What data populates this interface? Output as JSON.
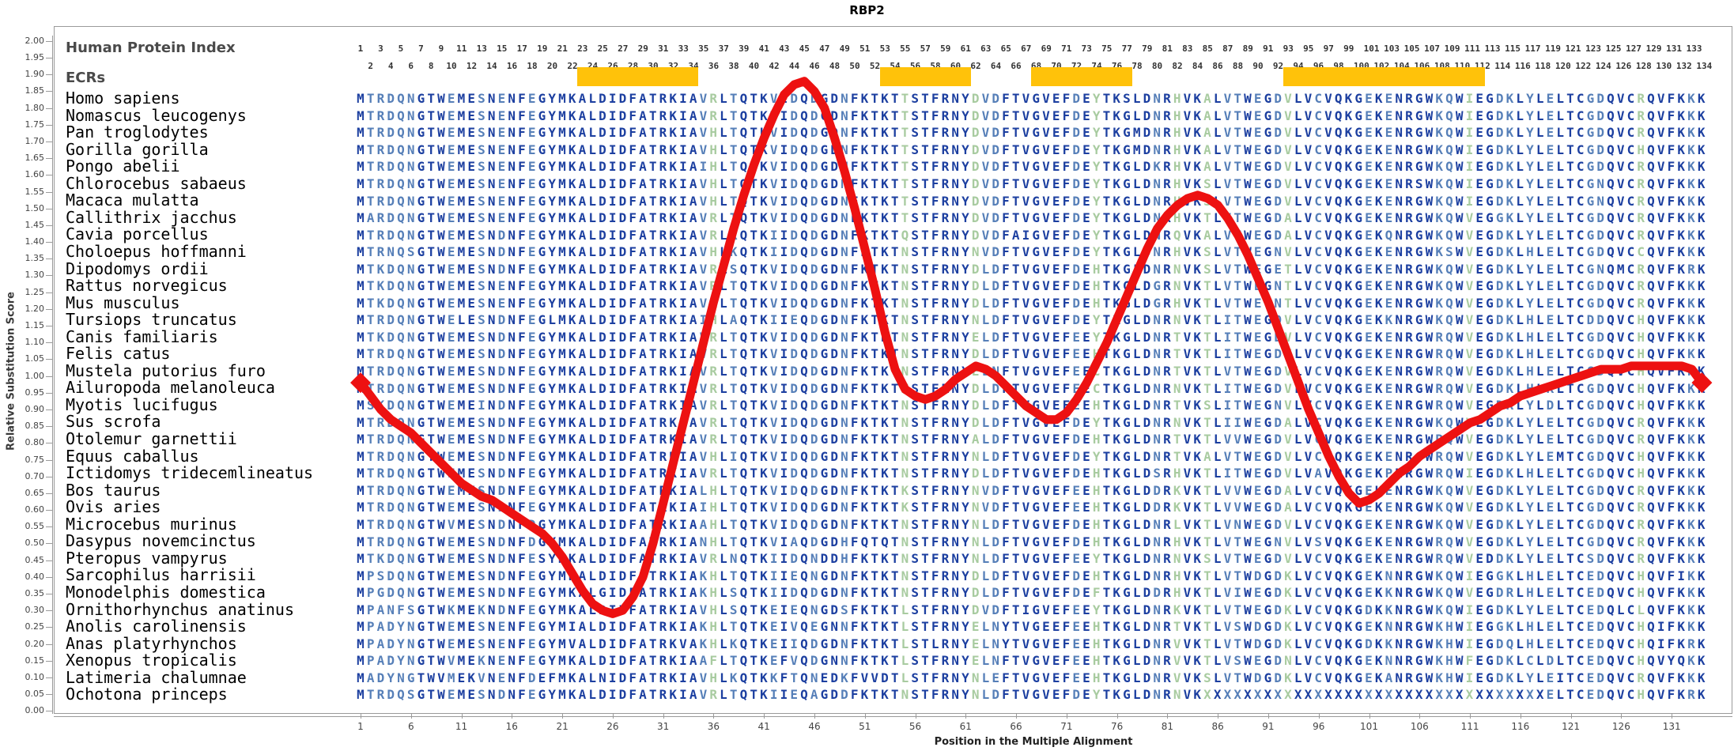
{
  "title": "RBP2",
  "header": {
    "index_label": "Human Protein Index",
    "ecr_label": "ECRs"
  },
  "y_axis": {
    "label": "Relative Substitution Score",
    "min": 0,
    "max": 2,
    "step": 0.05
  },
  "x_axis": {
    "label": "Position in the Multiple Alignment",
    "tick_first": 1,
    "tick_step": 5,
    "tick_last": 131,
    "positions": 134
  },
  "colors": {
    "conserved": "#1C3FA0",
    "variable": "#567FB8",
    "hypervariable": "#A8CBA0",
    "ecr_bar": "#FFC20A",
    "curve": "#ED1111",
    "axis": "#9a9a9a"
  },
  "ecr_regions": [
    {
      "start": 23,
      "end": 34
    },
    {
      "start": 53,
      "end": 61
    },
    {
      "start": 68,
      "end": 77
    },
    {
      "start": 93,
      "end": 112
    }
  ],
  "species": [
    "Homo sapiens",
    "Nomascus leucogenys",
    "Pan troglodytes",
    "Gorilla gorilla",
    "Pongo abelii",
    "Chlorocebus sabaeus",
    "Macaca mulatta",
    "Callithrix jacchus",
    "Cavia porcellus",
    "Choloepus hoffmanni",
    "Dipodomys ordii",
    "Rattus norvegicus",
    "Mus musculus",
    "Tursiops truncatus",
    "Canis familiaris",
    "Felis catus",
    "Mustela putorius furo",
    "Ailuropoda melanoleuca",
    "Myotis lucifugus",
    "Sus scrofa",
    "Otolemur garnettii",
    "Equus caballus",
    "Ictidomys tridecemlineatus",
    "Bos taurus",
    "Ovis aries",
    "Microcebus murinus",
    "Dasypus novemcinctus",
    "Pteropus vampyrus",
    "Sarcophilus harrisii",
    "Monodelphis domestica",
    "Ornithorhynchus anatinus",
    "Anolis carolinensis",
    "Anas platyrhynchos",
    "Xenopus tropicalis",
    "Latimeria chalumnae",
    "Ochotona princeps"
  ],
  "sequences": [
    "MTRDQNGTWEMESNENFEGYMKALDIDFATRKIAVRLTQTKVIDQDGDNFKTKTTSTFRNYDVDFTVGVEFDEYTKSLDNRHVKALVTWEGDVLVCVQKGEKENRGWKQWIEGDKLYLELTCGDQVCRQVFKKK",
    "MTRDQNGTWEMESNENFEGYMKALDIDFATRKIAVRLTQTKVIDQDGDNFKTKTTSTFRNYDVDFTVGVEFDEYTKGLDNRHVKALVTWEGDVLVCVQKGEKENRGWKQWIEGDKLYLELTCGDQVCRQVFKKK",
    "MTRDQNGTWEMESNENFEGYMKALDIDFATRKIAVHLTQTKVIDQDGDNFKTKTTSTFRNYDVDFTVGVEFDEYTKGMDNRHVKALVTWEGDVLVCVQKGEKENRGWKQWIEGDKLYLELTCGDQVCRQVFKKK",
    "MTRDQNGTWEMESNENFEGYMKALDIDFATRKIAVHLTQTKVIDQDGDNFKTKTTSTFRNYDVDFTVGVEFDEYTKGMDNRHVKALVTWEGDVLVCVQKGEKENRGWKQWIEGDKLYLELTCGDQVCHQVFKKK",
    "MTRDQNGTWEMESNENFEGYMKALDIDFATRKIAIHLTQTKVIDQDGDNFKTKTTSTFRNYDVDFTVGVEFDEYTKGLDKRHVKALVTWEGDVLVCVQKGEKENRGWKQWIEGDKLYLELTCGDQVCRQVFKKK",
    "MTRDQNGTWEMESNENFEGYMKALDIDFATRKIAVHLTQTKVIDQDGDNFKTKTTSTFRNYDVDFTVGVEFDEYTKGLDNRHVKSLVTWEGDVLVCVQKGEKENRSWKQWIEGDKLYLELTCGNQVCRQVFKKK",
    "MTRDQNGTWEMESNENFEGYMKALDIDFATRKIAVHLTQTKVIDQDGDNFKTKTTSTFRNYDVDFTVGVEFDEYTKGLDNRHVKSLVTWEGDVLVCVQKGEKENRGWKQWIEGDKLYLELTCGNQVCRQVFKKK",
    "MARDQNGTWEMESNENFEGYMKALDIDFATRKIAVRLTQTKVIDQDGDNFKTKTTSTFRNYDVDFTVGVEFDEYTKGLDNRHVKTLVTWEGDALVCVQKGEKENRGWKQWVEGGKLYLELTCGDQVCRQVFKKK",
    "MTRDQNGTWEMESNDNFEGYMKALDIDFATRKIAVRLKQTKIIDQDGDNFKTKTQSTFRNYDVDFAIGVEFDEYTKGLDNRQVKALVTWEGDALVCVQKGEKQNRGWKQWVEGDKLYLELTCGDQVCRQVFKKK",
    "MTRNQSGTWEMESNDNFEGYMKALDIDFATRKIAVHLKQTKIIDQDGDNFKTKTNSTFRNYNVDFTVGVEFDEYTKGLDNRHVKSLVTWEGNVLVCVQKGEKENRGWKSWVEGDKLHLELTCGDQVCCQVFKKK",
    "MTKDQNGTWEMESNDNFEGYMKALDIDFATRKIAVRLSQTKVIDQDGDNFKTKTNSTFRNYDLDFTVGVEFDEHTKGLDNRNVKSLVTWEGETLVCVQKGEKENRGWKQWVEGDKLYLELTCGNQMCRQVFKRK",
    "MTKDQNGTWEMESNENFEGYMKALDIDFATRKIAVRLTQTKVIDQDGDNFKTKTNSTFRNYDLDFTVGVEFDEHTKGLDGRNVKTLVTWEGNTLVCVQKGEKENRGWKQWVEGDKLYLELTCGDQVCRQVFKKK",
    "MTKDQNGTWEMESNENFEGYMKALDIDFATRKIAVRLTQTKVIDQDGDNFKTKTNSTFRNYDLDFTVGVEFDEHTKGLDGRHVKTLVTWEGNTLVCVQKGEKENRGWKQWVEGDKLYLELTCGDQVCRQVFKKK",
    "MTRDQNGTWELESNDNFEGLMKALDIDFATRKIAIHLAQTKIIEQDGDNFKTKTNSTFRNYNLDFTVGVEFDEYTKGLDNRNVKTLITWEGDVLVCVQKGEKKNRGWKQWVEGDKLHLELTCDDQVCHQVFKKK",
    "MTKDQNGTWEMESNDNFEGYMKALDIDFATRKIAVRLTQTKVIDQDGDNFKTKTNSTFRNYELDFTVGVEFEEYTKGLDNRTVKTLITWEGDVLVCVQKGEKENRGWRQWVEGDKLHLELTCGDQVCHQVFKKK",
    "MTRDQNGTWEMESNDNFEGYMKALDIDFATRKIAVRLTQTKVIDQDGDNFKTKTNSTFRNYDLDFTVGVEFEEHTKGLDNRTVKTLITWEGDVLVCVQKGEKENRGWRQWVEGDKLHLELTCGDQVCHQVFKKK",
    "MTRDQNGTWEMESNDNFEGYMKALDIDFATRKIAVRLTQTKVIDQDGDNFKTKTNSTFRNYELNFTVGVEFEECTKGLDNRTVKTLVTWEGDVLVCVQKGEKENRGWRQWVEGDKLHLELTCGDQVCHQVFKKK",
    "MTRDQNGTWEMESNDNFEGYMKALDIDFATRKIAVRLTQTKVIDQDGDNFKTKTNSTFRNYDLDFTVGVEFEECTKGLDNRNVKTLITWEGDVLVCVQKGEKENRGWRQWVEGDKLHLKLTCGDQVCHQVFKKK",
    "MSKDQNGTWEMEINDNFEGYMKALDIDFATRKIAVRLTQTKVIDQDGDNFKTKTNSTFRNYDLDFTVGVEFEEHTKGLDNRTVKSLITWEGNVLVCVQKGEKENRGWRQWVEGDKLYLDLTCGDQVCHQVFKKK",
    "MTRDQNGTWEMESNDNFEGYMKALDIDFATRKIAVRLTQTKVIDQDGDNFKTKTNSTFRNYDLDFTVGVEFDEYTKGLDNRNVKTLIIWEGDALVCVQKGEKENRGWKQWVEGDKLYLELTCGDQVCRQVFKKK",
    "MTRDQNGTWEMESNDNFEGYMKALDIDFATRKIAVRLTQTKVIDQDGDNFKTKTNSTFRNYALDFTVGVEFDEHTKGLDNRTVKTLVVWEGDVLVCVQKGEKENRGWRQWVEGDKLYLELTCGDQVCRQVFKKK",
    "MTRDQNGTWEMESNDNFEGYMKALDIDFATRKIAVHLIQTKVIDQDGDNFKTKTNSTFRNYNLDFTVGVEFDEYTKGLDNRTVKALVTWEGDVLVCVQKGEKENRGWRQWVEGDKLYLEMTCGDQVCHQVFKKK",
    "MTRDQNGTWEMESNDNFEGYMKALDIDFATRKIAVRLTQTKVIDQDGDNFKTKTNSTFRNYDLDFTVGVEFDEHTKGLDSRHVKTLITWEGDVLVAVQKGEKPNRGWRQWIEGDKLHLELTCGDQVCHQVFKKK",
    "MTRDQNGTWEMESNDNFEGYMKALDIDFATRKIALHLTQTKVIDQDGDNFKTKTKSTFRNYNVDFTVGVEFEEHTKGLDDRKVKTLVVWEGDALVCVQKGEKENRGWKQWVEGDKLYLELTCGDQVCRQVFKKK",
    "MTRDQNGTWEMESNDNFEGYMKALDIDFATRKIAIHLTQTKVIDQDGDNFKTKTKSTFRNYNVDFTVGVEFEEHTKGLDDRKVKTLVVWEGDALVCVQKGEKENRGWKQWVEGDKLYLELTCGDQVCRQVFKKK",
    "MTRDQNGTWVMESNDNFDGYMKALDIDFATRKIAAHLTQTKVIDQDGDNFKTKTNSTFRNYNLDFTVGVEFDEHTKGLDNRLVKTLVNWEGDVLVCVQKGEKENRGWKQWVEGDKLYLELTCGDQVCRQVFKKK",
    "MTRDQNGTWEMESNDNFDGYMKALDIDFATRKIANHLTQTKVIAQDGDHFQTQTNSTFRNYNLDFTVGVEFDEHTKGLDNRHVKTLVTWEGNVLVSVQKGEKENRGWRQWVEGDKLYLELTCGDQVCRQVFKKK",
    "MTKDQNGTWEMESNDNFESYMKALDIDFATRKIAVRLNQTKIIDQNDDHFKTKTNSTFRNYNLDFTVGVEFEEYTKGLDNRNVKSLVTWEGDVLVCVQKGEKENRGWRQWVEDDKLYLELTCSDQVCRQVFKKK",
    "MPSDQNGTWEMESNDNFEGYMKALDIDFATRKIAKHLTQTKIIEQNGDNFKTKTNSTFRNYDLDFTVGVEFDEHTKGLDNRHVKTLVTWDGDKLVCVQKGEKNNRGWKQWIEGGKLHLELTCEDQVCHQVFIKK",
    "MPGDQNGTWEMESNDNFEGYMKALGIDFATRKIAKHLSQTKIIDQDGDNFKTKTNSTFRNYDLDFTVGVEFDEFTKGLDDRHVKTLVIWEGDKLVCVQKGEKKNRGWKQWVEGDRLHLELTCEDQVCHQVFKKK",
    "MPANFSGTWKMEKNDNFEGYMKALDIDFATRKIAVHLSQTKEIEQNGDSFKTKTLSTFRNYDVDFTIGVEFEEYTKGLDNRKVKTLVTWEGDKLVCVQKGDKKNRGWKQWIEGDKLYLELTCEDQLCLQVFKKK",
    "MPADYNGTWEMESNENFEGYMIALDIDFATRKIAKHLTQTKEIVQEGNNFKTKTLSTFRNYELNYTVGEEFEEHTKGLDNRTVKTLVSWDGDKLVCVQKGEKNNRGWKHWIEGGKLHLELTCEDQVCHQIFKKK",
    "MPADYNGTWEMESNENFEGYMVALDIDFATRKVAKHLKQTKEIIQDGDNFKTKTLSTLRNYELNYTVGVEFEEHTKGLDNRVVKTLVTWDGDKLVCVQKGDKKNRGWKHWIEGDQLHLELTCEDQVCHQIFKRK",
    "MPADYNGTWVMEKNENFEGYMKALDIDFATRKIAAFLTQTKEFVQDGNNFKTKTLSTFRNYELNFTVGVEFEEHTKGLDNRVVKTLVSWEGDNLVCVQKGEKNNRGWKHWFEGDKLCLDLTCEDQVCHQVYQKK",
    "MADYNGTWVMEKVNENFDEFMKALNIDFATRKIAVHLKQTKKFTQNEDKFVVDTLSTFRNYNLEFTVGVEFEEHTKGLDNRVVKSLVTWDGDKLVCVQKGEKANRGWKHWIEGDKLYLEITCEDQVCRQVFKKK",
    "MTRDQSGTWEMESNDNFEGYMKALDIDFATRKIAVRLTQTKIIEQAGDDFKTKTNSTFRNYNLDFTVGVEFDEYTKGLDNRNVKXXXXXXXXXXXXXXXXXXXXXXXXXXXXXXXXXXELTCEDQVCHQVFKRK"
  ],
  "chart_data": {
    "type": "line",
    "title": "RBP2",
    "xlabel": "Position in the Multiple Alignment",
    "ylabel": "Relative Substitution Score",
    "ylim": [
      0,
      2
    ],
    "x_range": [
      1,
      134
    ],
    "grid": false,
    "legend_position": "none",
    "x_ticks": [
      1,
      6,
      11,
      16,
      21,
      26,
      31,
      36,
      41,
      46,
      51,
      56,
      61,
      66,
      71,
      76,
      81,
      86,
      91,
      96,
      101,
      106,
      111,
      116,
      121,
      126,
      131
    ],
    "y_ticks": [
      "0.00",
      "0.05",
      "0.10",
      "0.15",
      "0.20",
      "0.25",
      "0.30",
      "0.35",
      "0.40",
      "0.45",
      "0.50",
      "0.55",
      "0.60",
      "0.65",
      "0.70",
      "0.75",
      "0.80",
      "0.85",
      "0.90",
      "0.95",
      "1.00",
      "1.05",
      "1.10",
      "1.15",
      "1.20",
      "1.25",
      "1.30",
      "1.35",
      "1.40",
      "1.45",
      "1.50",
      "1.55",
      "1.60",
      "1.65",
      "1.70",
      "1.75",
      "1.80",
      "1.85",
      "1.90",
      "1.95",
      "2.00"
    ],
    "series": [
      {
        "name": "Relative Substitution Score",
        "marker": "diamond-at-ends",
        "color": "#ED1111",
        "values": [
          0.98,
          0.94,
          0.9,
          0.87,
          0.85,
          0.83,
          0.8,
          0.77,
          0.74,
          0.71,
          0.68,
          0.66,
          0.64,
          0.63,
          0.61,
          0.59,
          0.57,
          0.55,
          0.53,
          0.5,
          0.46,
          0.41,
          0.36,
          0.32,
          0.3,
          0.29,
          0.3,
          0.34,
          0.4,
          0.5,
          0.62,
          0.74,
          0.86,
          0.98,
          1.1,
          1.22,
          1.33,
          1.44,
          1.54,
          1.63,
          1.71,
          1.78,
          1.84,
          1.87,
          1.88,
          1.85,
          1.8,
          1.71,
          1.61,
          1.5,
          1.38,
          1.26,
          1.13,
          1.02,
          0.96,
          0.94,
          0.93,
          0.94,
          0.96,
          0.99,
          1.01,
          1.03,
          1.02,
          1.0,
          0.97,
          0.94,
          0.91,
          0.89,
          0.87,
          0.87,
          0.89,
          0.93,
          0.98,
          1.04,
          1.1,
          1.17,
          1.24,
          1.31,
          1.38,
          1.44,
          1.48,
          1.51,
          1.53,
          1.54,
          1.53,
          1.51,
          1.47,
          1.42,
          1.36,
          1.29,
          1.22,
          1.14,
          1.06,
          0.98,
          0.9,
          0.83,
          0.76,
          0.7,
          0.65,
          0.62,
          0.63,
          0.65,
          0.68,
          0.71,
          0.73,
          0.76,
          0.78,
          0.8,
          0.82,
          0.84,
          0.86,
          0.87,
          0.89,
          0.91,
          0.92,
          0.94,
          0.95,
          0.96,
          0.97,
          0.98,
          0.99,
          1.0,
          1.01,
          1.02,
          1.02,
          1.02,
          1.03,
          1.03,
          1.03,
          1.03,
          1.03,
          1.03,
          1.02,
          0.98
        ]
      }
    ]
  }
}
